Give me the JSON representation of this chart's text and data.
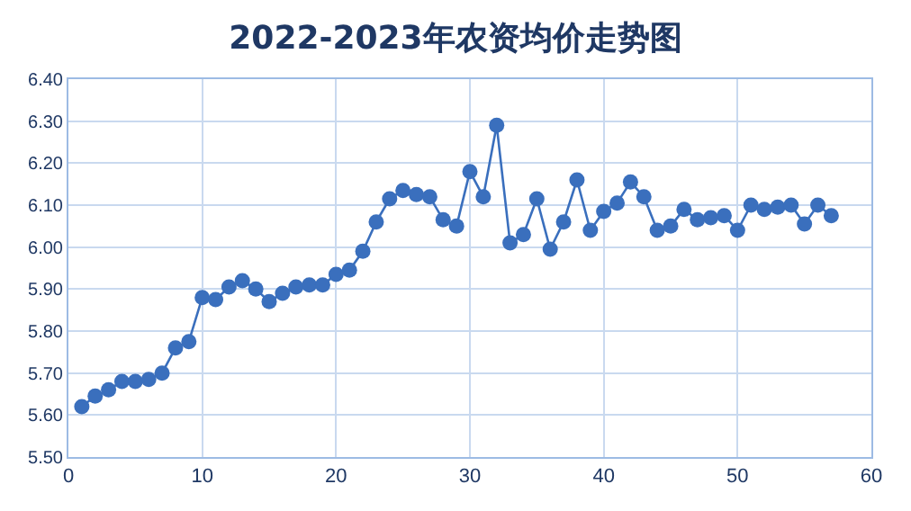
{
  "chart_data": {
    "type": "line",
    "title": "2022-2023年农资均价走势图",
    "x": [
      1,
      2,
      3,
      4,
      5,
      6,
      7,
      8,
      9,
      10,
      11,
      12,
      13,
      14,
      15,
      16,
      17,
      18,
      19,
      20,
      21,
      22,
      23,
      24,
      25,
      26,
      27,
      28,
      29,
      30,
      31,
      32,
      33,
      34,
      35,
      36,
      37,
      38,
      39,
      40,
      41,
      42,
      43,
      44,
      45,
      46,
      47,
      48,
      49,
      50,
      51,
      52,
      53,
      54,
      55,
      56,
      57
    ],
    "series": [
      {
        "color": "#3a6fbd",
        "values": [
          5.62,
          5.645,
          5.66,
          5.68,
          5.68,
          5.685,
          5.7,
          5.76,
          5.775,
          5.88,
          5.875,
          5.905,
          5.92,
          5.9,
          5.87,
          5.89,
          5.905,
          5.91,
          5.91,
          5.935,
          5.945,
          5.99,
          6.06,
          6.115,
          6.135,
          6.125,
          6.12,
          6.065,
          6.05,
          6.18,
          6.12,
          6.29,
          6.01,
          6.03,
          6.115,
          5.995,
          6.06,
          6.16,
          6.04,
          6.085,
          6.105,
          6.155,
          6.12,
          6.04,
          6.05,
          6.09,
          6.065,
          6.07,
          6.075,
          6.04,
          6.1,
          6.09,
          6.095,
          6.1,
          6.055,
          6.1,
          6.075
        ]
      }
    ],
    "xlim": [
      0,
      60
    ],
    "xticks": [
      0,
      10,
      20,
      30,
      40,
      50,
      60
    ],
    "ylim": [
      5.5,
      6.4
    ],
    "yticks": [
      {
        "value": 5.5,
        "label": "5.50"
      },
      {
        "value": 5.6,
        "label": "5.60"
      },
      {
        "value": 5.7,
        "label": "5.70"
      },
      {
        "value": 5.8,
        "label": "5.80"
      },
      {
        "value": 5.9,
        "label": "5.90"
      },
      {
        "value": 6.0,
        "label": "6.00"
      },
      {
        "value": 6.1,
        "label": "6.10"
      },
      {
        "value": 6.2,
        "label": "6.20"
      },
      {
        "value": 6.3,
        "label": "6.30"
      },
      {
        "value": 6.4,
        "label": "6.40"
      }
    ],
    "grid": true,
    "marker": "circle",
    "line_style": "solid"
  }
}
